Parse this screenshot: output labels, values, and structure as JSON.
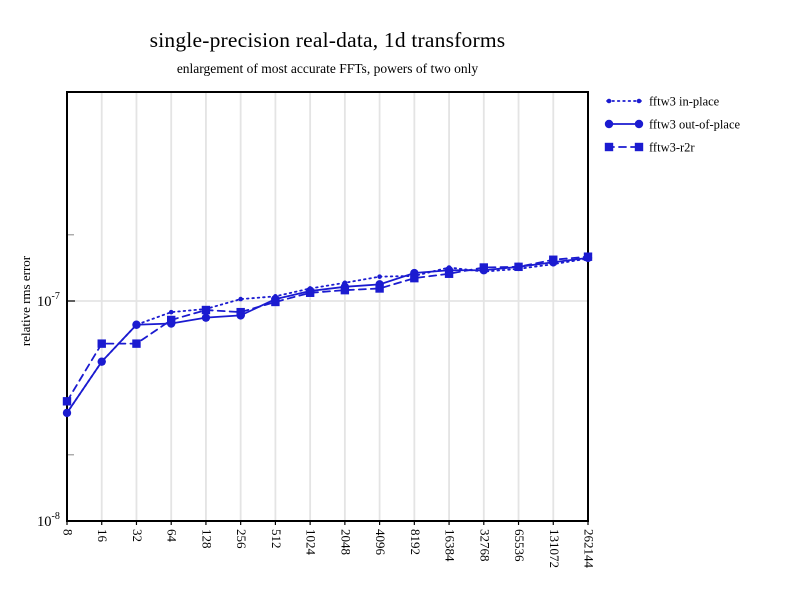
{
  "chart": {
    "title": "single-precision real-data, 1d transforms",
    "subtitle": "enlargement of most accurate FFTs, powers of two only",
    "ylabel": "relative rms error",
    "accent_color": "#1b1bd0",
    "grid_color": "#e4e4e4",
    "minor_tick_color": "#9a9a9a",
    "frame_color": "#000000"
  },
  "chart_data": {
    "type": "line",
    "title": "single-precision real-data, 1d transforms",
    "subtitle": "enlargement of most accurate FFTs, powers of two only",
    "xlabel": "",
    "ylabel": "relative rms error",
    "x_scale": "log2",
    "y_scale": "log10",
    "grid": true,
    "legend_position": "top-right-outside",
    "categories": [
      8,
      16,
      32,
      64,
      128,
      256,
      512,
      1024,
      2048,
      4096,
      8192,
      16384,
      32768,
      65536,
      131072,
      262144
    ],
    "ylim": [
      1e-08,
      1e-06
    ],
    "y_ticks": [
      {
        "value": 1e-08,
        "base": "10",
        "exp": "-8"
      },
      {
        "value": 1e-07,
        "base": "10",
        "exp": "-7"
      }
    ],
    "y_minor_ticks": [
      2e-08,
      2e-07
    ],
    "series": [
      {
        "name": "fftw3 in-place",
        "marker": "dot",
        "line": "dotted",
        "values": [
          3.1e-08,
          5.3e-08,
          7.8e-08,
          8.9e-08,
          9.2e-08,
          1.02e-07,
          1.05e-07,
          1.14e-07,
          1.21e-07,
          1.29e-07,
          1.3e-07,
          1.42e-07,
          1.36e-07,
          1.4e-07,
          1.47e-07,
          1.56e-07
        ]
      },
      {
        "name": "fftw3 out-of-place",
        "marker": "circle",
        "line": "solid",
        "values": [
          3.1e-08,
          5.3e-08,
          7.8e-08,
          7.9e-08,
          8.4e-08,
          8.6e-08,
          1.02e-07,
          1.11e-07,
          1.16e-07,
          1.19e-07,
          1.34e-07,
          1.38e-07,
          1.38e-07,
          1.43e-07,
          1.5e-07,
          1.57e-07
        ]
      },
      {
        "name": "fftw3-r2r",
        "marker": "square",
        "line": "dashed",
        "values": [
          3.5e-08,
          6.4e-08,
          6.4e-08,
          8.2e-08,
          9.1e-08,
          8.9e-08,
          9.9e-08,
          1.09e-07,
          1.12e-07,
          1.14e-07,
          1.27e-07,
          1.33e-07,
          1.42e-07,
          1.43e-07,
          1.54e-07,
          1.59e-07
        ]
      }
    ]
  }
}
